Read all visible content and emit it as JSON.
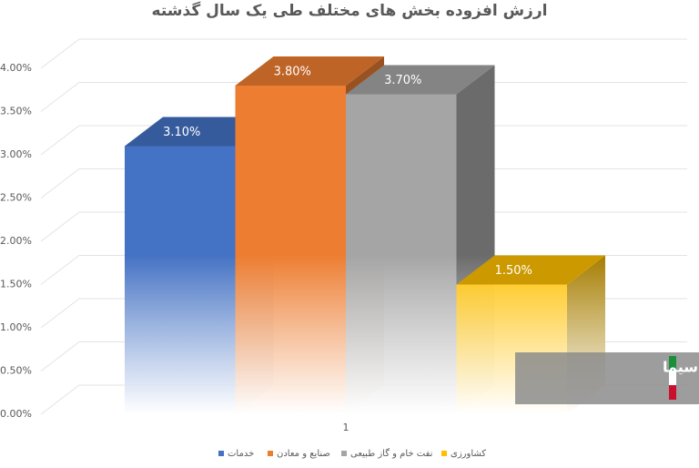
{
  "chart_data": {
    "type": "bar3d",
    "title": "ارزش افزوده بخش های مختلف طی یک سال گذشته",
    "categories": [
      "1"
    ],
    "series": [
      {
        "name": "خدمات",
        "color": "#4472c4",
        "values": [
          3.1
        ],
        "value_labels": [
          "3.10%"
        ]
      },
      {
        "name": "صنایع و معادن",
        "color": "#ed7d31",
        "values": [
          3.8
        ],
        "value_labels": [
          "3.80%"
        ]
      },
      {
        "name": "نفت خام و گاز طبیعی",
        "color": "#a5a5a5",
        "values": [
          3.7
        ],
        "value_labels": [
          "3.70%"
        ]
      },
      {
        "name": "کشاورزی",
        "color": "#ffc000",
        "values": [
          1.5
        ],
        "value_labels": [
          "1.50%"
        ]
      }
    ],
    "ylim": [
      0,
      4
    ],
    "yticks": [
      {
        "value": 0,
        "label": "0.00%"
      },
      {
        "value": 0.5,
        "label": "0.50%"
      },
      {
        "value": 1,
        "label": "1.00%"
      },
      {
        "value": 1.5,
        "label": "1.50%"
      },
      {
        "value": 2,
        "label": "2.00%"
      },
      {
        "value": 2.5,
        "label": "2.50%"
      },
      {
        "value": 3,
        "label": "3.00%"
      },
      {
        "value": 3.5,
        "label": "3.50%"
      },
      {
        "value": 4,
        "label": "4.00%"
      }
    ],
    "grid": true,
    "legend": "bottom",
    "watermark": "خبرگزاری صدا و سیما"
  }
}
